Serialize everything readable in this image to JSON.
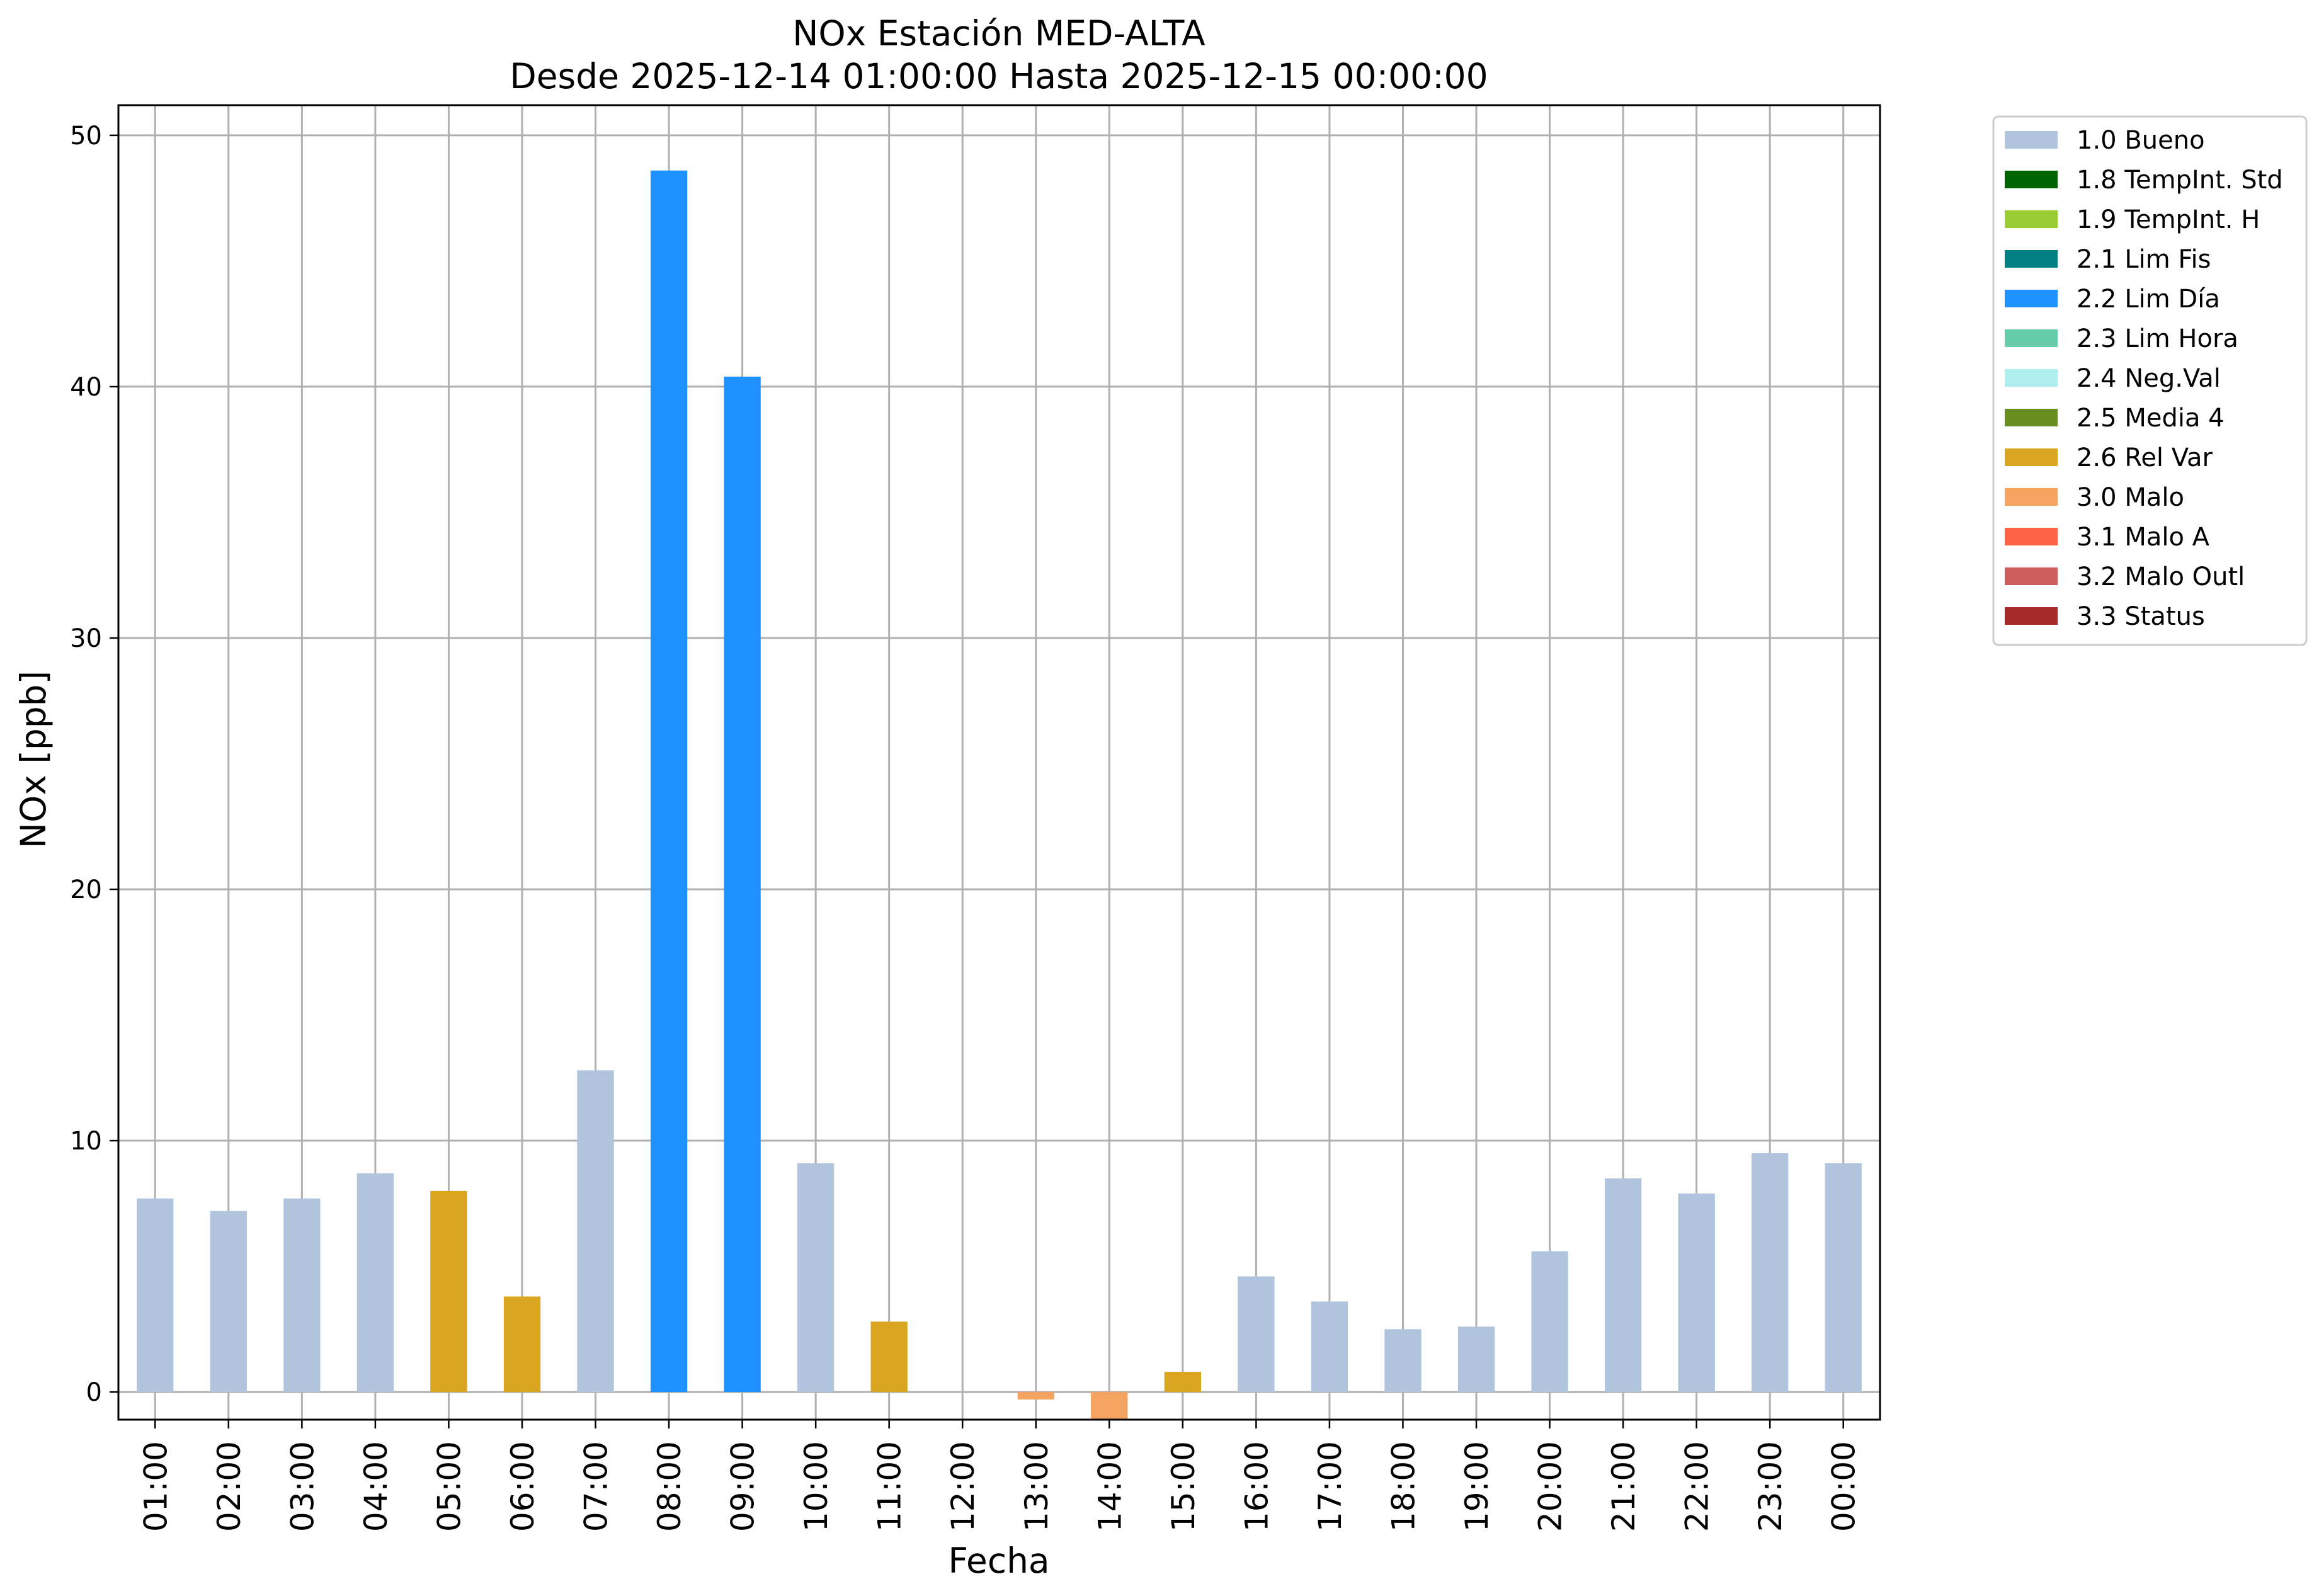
{
  "chart_data": {
    "type": "bar",
    "title": "NOx Estación MED-ALTA",
    "subtitle": "Desde 2025-12-14 01:00:00 Hasta 2025-12-15 00:00:00",
    "xlabel": "Fecha",
    "ylabel": "NOx [ppb]",
    "ylim": [
      -1.1,
      51.2
    ],
    "yticks": [
      0,
      10,
      20,
      30,
      40,
      50
    ],
    "grid": true,
    "legend_position": "outside-top-right",
    "categories": [
      "01:00",
      "02:00",
      "03:00",
      "04:00",
      "05:00",
      "06:00",
      "07:00",
      "08:00",
      "09:00",
      "10:00",
      "11:00",
      "12:00",
      "13:00",
      "14:00",
      "15:00",
      "16:00",
      "17:00",
      "18:00",
      "19:00",
      "20:00",
      "21:00",
      "22:00",
      "23:00",
      "00:00"
    ],
    "values": [
      7.7,
      7.2,
      7.7,
      8.7,
      8.0,
      3.8,
      12.8,
      48.6,
      40.4,
      9.1,
      2.8,
      0.0,
      -0.3,
      -1.1,
      0.8,
      4.6,
      3.6,
      2.5,
      2.6,
      5.6,
      8.5,
      7.9,
      9.5,
      9.1
    ],
    "flags": [
      "1.0",
      "1.0",
      "1.0",
      "1.0",
      "2.6",
      "2.6",
      "1.0",
      "2.2",
      "2.2",
      "1.0",
      "2.6",
      "",
      "3.0",
      "3.0",
      "2.6",
      "1.0",
      "1.0",
      "1.0",
      "1.0",
      "1.0",
      "1.0",
      "1.0",
      "1.0",
      "1.0"
    ],
    "legend": [
      {
        "key": "1.0",
        "label": "1.0 Bueno",
        "color": "#b0c4de"
      },
      {
        "key": "1.8",
        "label": "1.8 TempInt. Std",
        "color": "#006400"
      },
      {
        "key": "1.9",
        "label": "1.9 TempInt. H",
        "color": "#9acd32"
      },
      {
        "key": "2.1",
        "label": "2.1 Lim Fis",
        "color": "#008080"
      },
      {
        "key": "2.2",
        "label": "2.2 Lim Día",
        "color": "#1e90ff"
      },
      {
        "key": "2.3",
        "label": "2.3 Lim Hora",
        "color": "#66cdaa"
      },
      {
        "key": "2.4",
        "label": "2.4 Neg.Val",
        "color": "#afeeee"
      },
      {
        "key": "2.5",
        "label": "2.5 Media 4",
        "color": "#6b8e23"
      },
      {
        "key": "2.6",
        "label": "2.6 Rel Var",
        "color": "#daa520"
      },
      {
        "key": "3.0",
        "label": "3.0 Malo",
        "color": "#f4a460"
      },
      {
        "key": "3.1",
        "label": "3.1 Malo A",
        "color": "#ff6347"
      },
      {
        "key": "3.2",
        "label": "3.2 Malo Outl",
        "color": "#cd5c5c"
      },
      {
        "key": "3.3",
        "label": "3.3 Status",
        "color": "#a52a2a"
      }
    ]
  }
}
